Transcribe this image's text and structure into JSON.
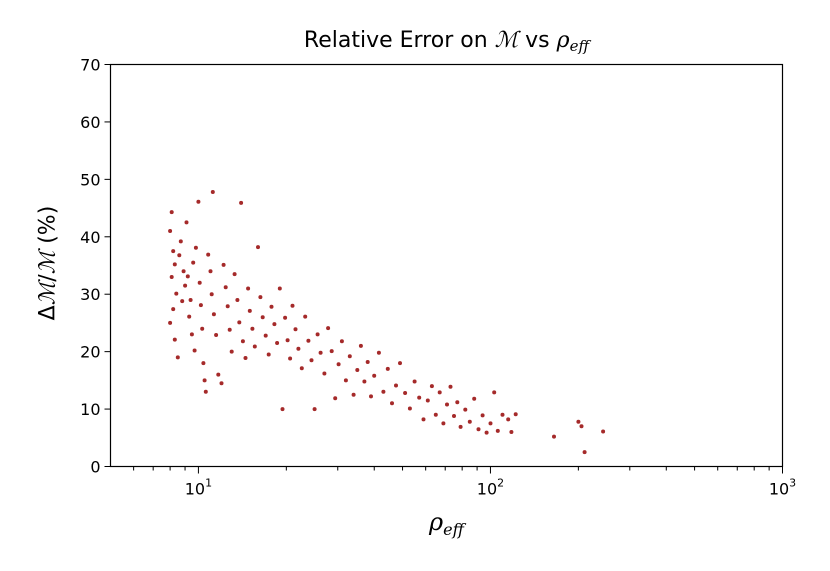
{
  "chart_data": {
    "type": "scatter",
    "title": {
      "prefix": "Relative  Error on ",
      "symbol": "ℳ",
      "middle": " vs ",
      "rho": "ρ",
      "rho_sub": "eff"
    },
    "xlabel": {
      "rho": "ρ",
      "sub": "eff"
    },
    "ylabel": {
      "delta": "Δ",
      "m1": "ℳ",
      "slash": "/",
      "m2": "ℳ",
      "unit": "  (%)"
    },
    "xscale": "log",
    "xlim": [
      5,
      1000
    ],
    "ylim": [
      0,
      70
    ],
    "yticks": [
      0,
      10,
      20,
      30,
      40,
      50,
      60,
      70
    ],
    "xticks": [
      {
        "base": "10",
        "exp": "1",
        "value": 10
      },
      {
        "base": "10",
        "exp": "2",
        "value": 100
      },
      {
        "base": "10",
        "exp": "3",
        "value": 1000
      }
    ],
    "grid": false,
    "marker_color": "#a52a2a",
    "points": [
      [
        8.0,
        41.0
      ],
      [
        8.1,
        44.3
      ],
      [
        8.2,
        37.5
      ],
      [
        8.3,
        35.2
      ],
      [
        8.1,
        33.0
      ],
      [
        8.4,
        30.1
      ],
      [
        8.2,
        27.4
      ],
      [
        8.0,
        25.0
      ],
      [
        8.3,
        22.1
      ],
      [
        8.5,
        19.0
      ],
      [
        8.6,
        36.8
      ],
      [
        8.7,
        39.2
      ],
      [
        8.9,
        34.0
      ],
      [
        9.0,
        31.5
      ],
      [
        8.8,
        28.8
      ],
      [
        9.1,
        42.5
      ],
      [
        9.2,
        33.1
      ],
      [
        9.4,
        29.0
      ],
      [
        9.3,
        26.1
      ],
      [
        9.5,
        23.0
      ],
      [
        9.6,
        35.5
      ],
      [
        9.8,
        38.1
      ],
      [
        9.7,
        20.2
      ],
      [
        10.0,
        46.1
      ],
      [
        10.1,
        32.0
      ],
      [
        10.2,
        28.1
      ],
      [
        10.3,
        24.0
      ],
      [
        10.4,
        18.0
      ],
      [
        10.5,
        15.0
      ],
      [
        10.6,
        13.0
      ],
      [
        10.8,
        36.9
      ],
      [
        11.0,
        34.0
      ],
      [
        11.1,
        30.0
      ],
      [
        11.2,
        47.8
      ],
      [
        11.3,
        26.5
      ],
      [
        11.5,
        22.9
      ],
      [
        11.7,
        16.0
      ],
      [
        12.0,
        14.5
      ],
      [
        12.2,
        35.1
      ],
      [
        12.4,
        31.2
      ],
      [
        12.6,
        27.9
      ],
      [
        12.8,
        23.8
      ],
      [
        13.0,
        20.0
      ],
      [
        13.3,
        33.5
      ],
      [
        13.6,
        29.0
      ],
      [
        13.8,
        25.1
      ],
      [
        14.0,
        45.9
      ],
      [
        14.2,
        21.8
      ],
      [
        14.5,
        18.9
      ],
      [
        14.8,
        31.0
      ],
      [
        15.0,
        27.1
      ],
      [
        15.3,
        24.0
      ],
      [
        15.6,
        20.9
      ],
      [
        16.0,
        38.2
      ],
      [
        16.3,
        29.5
      ],
      [
        16.6,
        26.0
      ],
      [
        17.0,
        22.8
      ],
      [
        17.4,
        19.5
      ],
      [
        17.8,
        27.8
      ],
      [
        18.2,
        24.8
      ],
      [
        18.6,
        21.5
      ],
      [
        19.0,
        31.0
      ],
      [
        19.4,
        10.0
      ],
      [
        19.8,
        25.9
      ],
      [
        20.2,
        22.0
      ],
      [
        20.6,
        18.8
      ],
      [
        21.0,
        28.0
      ],
      [
        21.5,
        23.9
      ],
      [
        22.0,
        20.5
      ],
      [
        22.6,
        17.1
      ],
      [
        23.2,
        26.1
      ],
      [
        23.8,
        21.9
      ],
      [
        24.4,
        18.5
      ],
      [
        25.0,
        10.0
      ],
      [
        25.6,
        23.0
      ],
      [
        26.2,
        19.8
      ],
      [
        27.0,
        16.2
      ],
      [
        27.8,
        24.1
      ],
      [
        28.6,
        20.1
      ],
      [
        29.4,
        11.9
      ],
      [
        30.2,
        17.8
      ],
      [
        31.0,
        21.8
      ],
      [
        32.0,
        15.0
      ],
      [
        33.0,
        19.2
      ],
      [
        34.0,
        12.5
      ],
      [
        35.0,
        16.8
      ],
      [
        36.0,
        21.0
      ],
      [
        37.0,
        14.8
      ],
      [
        38.0,
        18.2
      ],
      [
        39.0,
        12.2
      ],
      [
        40.0,
        15.8
      ],
      [
        41.5,
        19.8
      ],
      [
        43.0,
        13.0
      ],
      [
        44.5,
        17.0
      ],
      [
        46.0,
        11.0
      ],
      [
        47.5,
        14.1
      ],
      [
        49.0,
        18.0
      ],
      [
        51.0,
        12.8
      ],
      [
        53.0,
        10.1
      ],
      [
        55.0,
        14.8
      ],
      [
        57.0,
        12.0
      ],
      [
        59.0,
        8.2
      ],
      [
        61.0,
        11.5
      ],
      [
        63.0,
        14.0
      ],
      [
        65.0,
        9.0
      ],
      [
        67.0,
        12.9
      ],
      [
        69.0,
        7.5
      ],
      [
        71.0,
        10.8
      ],
      [
        73.0,
        13.9
      ],
      [
        75.0,
        8.8
      ],
      [
        77.0,
        11.2
      ],
      [
        79.0,
        6.9
      ],
      [
        82.0,
        9.9
      ],
      [
        85.0,
        7.8
      ],
      [
        88.0,
        11.8
      ],
      [
        91.0,
        6.5
      ],
      [
        94.0,
        8.9
      ],
      [
        97.0,
        5.9
      ],
      [
        100.0,
        7.5
      ],
      [
        103.0,
        12.9
      ],
      [
        106.0,
        6.2
      ],
      [
        110.0,
        9.0
      ],
      [
        115.0,
        8.2
      ],
      [
        118.0,
        6.0
      ],
      [
        122.0,
        9.1
      ],
      [
        165.0,
        5.2
      ],
      [
        200.0,
        7.8
      ],
      [
        205.0,
        7.0
      ],
      [
        210.0,
        2.5
      ],
      [
        243.0,
        6.1
      ]
    ]
  }
}
